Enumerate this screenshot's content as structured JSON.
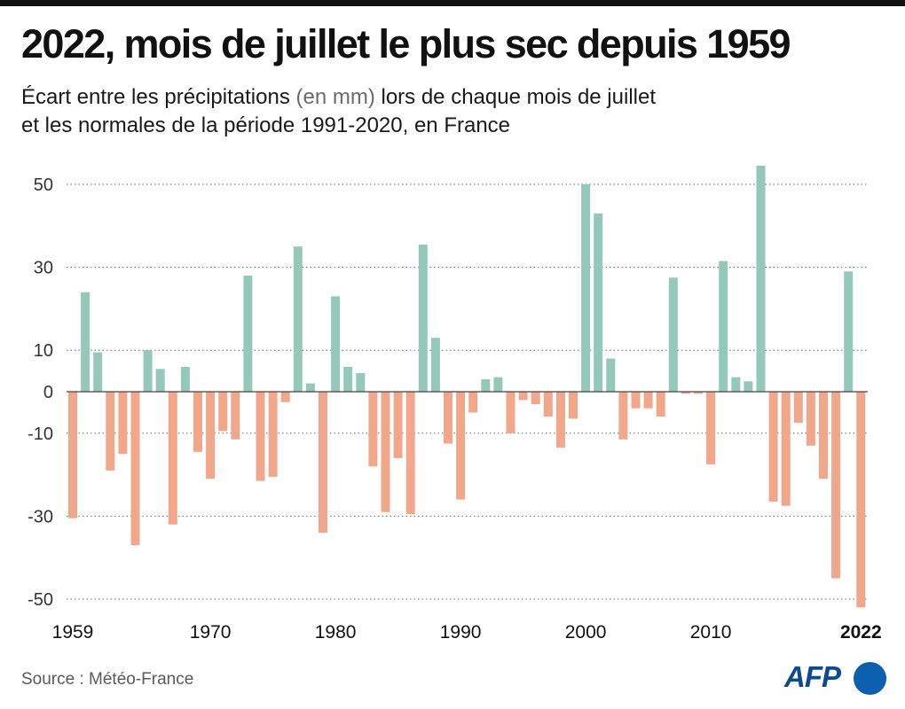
{
  "header": {
    "title": "2022, mois de juillet le plus sec depuis 1959",
    "subtitle_part1": "Écart entre les précipitations ",
    "subtitle_unit": "(en mm)",
    "subtitle_part2": " lors de chaque mois de juillet",
    "subtitle_line2": "et les normales de la période 1991-2020, en France"
  },
  "source": "Source : Météo-France",
  "logo": {
    "text": "AFP"
  },
  "colors": {
    "positive": "#94c9ba",
    "negative": "#f2a68a",
    "grid": "#666666",
    "baseline": "#444444"
  },
  "chart_data": {
    "type": "bar",
    "x": [
      1959,
      1960,
      1961,
      1962,
      1963,
      1964,
      1965,
      1966,
      1967,
      1968,
      1969,
      1970,
      1971,
      1972,
      1973,
      1974,
      1975,
      1976,
      1977,
      1978,
      1979,
      1980,
      1981,
      1982,
      1983,
      1984,
      1985,
      1986,
      1987,
      1988,
      1989,
      1990,
      1991,
      1992,
      1993,
      1994,
      1995,
      1996,
      1997,
      1998,
      1999,
      2000,
      2001,
      2002,
      2003,
      2004,
      2005,
      2006,
      2007,
      2008,
      2009,
      2010,
      2011,
      2012,
      2013,
      2014,
      2015,
      2016,
      2017,
      2018,
      2019,
      2020,
      2021,
      2022
    ],
    "values": [
      -30.5,
      24,
      9.5,
      -19,
      -15,
      -37,
      10,
      5.5,
      -32,
      6,
      -14.5,
      -21,
      -9.5,
      -11.5,
      28,
      -21.5,
      -20.5,
      -2.5,
      35,
      2,
      -34,
      23,
      6,
      4.5,
      -18,
      -29,
      -16,
      -29.5,
      35.5,
      13,
      -12.5,
      -26,
      -5,
      3,
      3.5,
      -10,
      -2,
      -3,
      -6,
      -13.5,
      -6.5,
      50,
      43,
      8,
      -11.5,
      -4,
      -4,
      -6,
      27.5,
      -0.5,
      -0.5,
      -17.5,
      31.5,
      3.5,
      2.5,
      54.5,
      -26.5,
      -27.5,
      -7.5,
      -13,
      -21,
      -45,
      29,
      -52
    ],
    "ticks_y": [
      50,
      30,
      10,
      0,
      -10,
      -30,
      -50
    ],
    "ticks_x": [
      "1959",
      "1970",
      "1980",
      "1990",
      "2000",
      "2010",
      "2022"
    ],
    "highlight_tick": "2022",
    "ylim": [
      -52,
      55
    ],
    "grid": true,
    "title": "2022, mois de juillet le plus sec depuis 1959",
    "ylabel": "",
    "xlabel": ""
  }
}
